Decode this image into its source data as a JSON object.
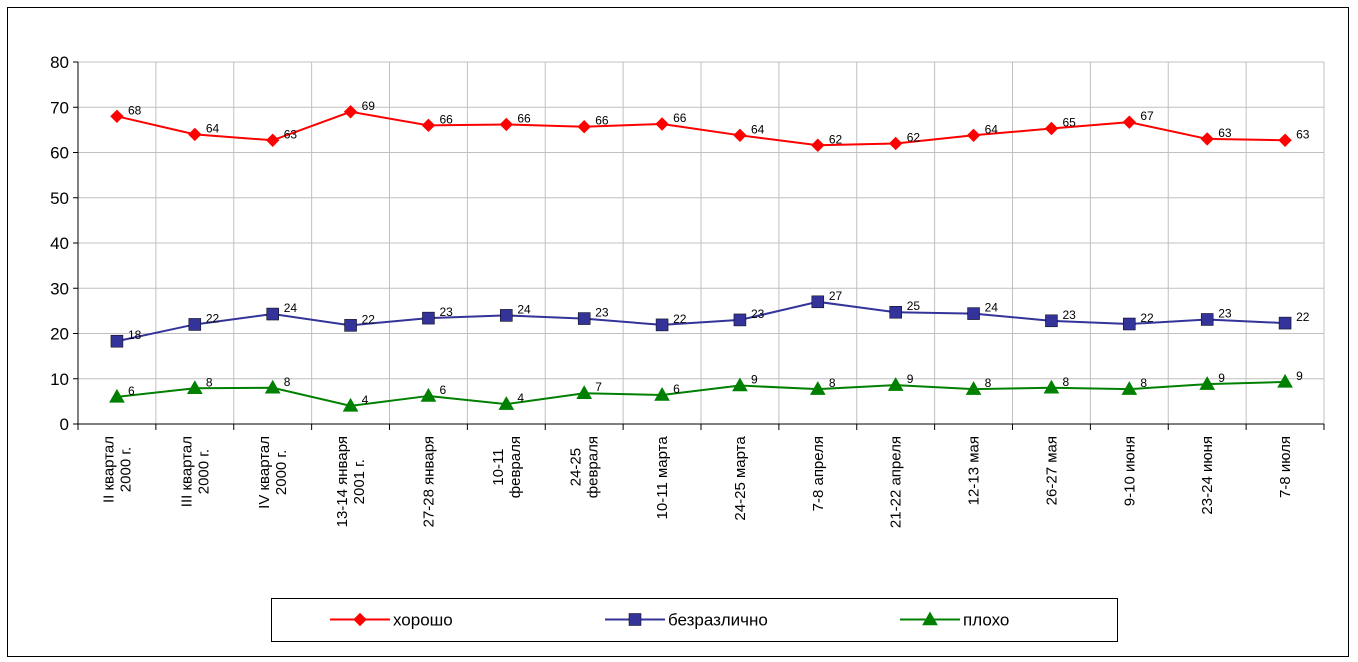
{
  "chart_data": {
    "type": "line",
    "categories": [
      [
        "II квартал",
        "2000 г."
      ],
      [
        "III квартал",
        "2000 г."
      ],
      [
        "IV квартал",
        "2000 г."
      ],
      [
        "13-14 января",
        "2001 г."
      ],
      [
        "27-28 января"
      ],
      [
        "10-11",
        "февраля"
      ],
      [
        "24-25",
        "февраля"
      ],
      [
        "10-11 марта"
      ],
      [
        "24-25 марта"
      ],
      [
        "7-8 апреля"
      ],
      [
        "21-22 апреля"
      ],
      [
        "12-13 мая"
      ],
      [
        "26-27 мая"
      ],
      [
        "9-10 июня"
      ],
      [
        "23-24 июня"
      ],
      [
        "7-8 июля"
      ]
    ],
    "series": [
      {
        "name": "хорошо",
        "color": "#ff0000",
        "marker": "diamond",
        "values": [
          68,
          64,
          62.7,
          69,
          66,
          66.2,
          65.7,
          66.3,
          63.8,
          61.6,
          62,
          63.8,
          65.3,
          66.7,
          63,
          62.7
        ],
        "labels": [
          "68",
          "64",
          "63",
          "69",
          "66",
          "66",
          "66",
          "66",
          "64",
          "62",
          "62",
          "64",
          "65",
          "67",
          "63",
          "63"
        ]
      },
      {
        "name": "безразлично",
        "color": "#333399",
        "marker": "square",
        "values": [
          18.3,
          22,
          24.3,
          21.8,
          23.4,
          24,
          23.3,
          21.9,
          23,
          27,
          24.7,
          24.4,
          22.8,
          22.1,
          23.1,
          22.3
        ],
        "labels": [
          "18",
          "22",
          "24",
          "22",
          "23",
          "24",
          "23",
          "22",
          "23",
          "27",
          "25",
          "24",
          "23",
          "22",
          "23",
          "22"
        ]
      },
      {
        "name": "плохо",
        "color": "#008000",
        "marker": "triangle",
        "values": [
          6,
          7.9,
          8,
          4,
          6.2,
          4.4,
          6.8,
          6.4,
          8.5,
          7.7,
          8.6,
          7.7,
          8,
          7.7,
          8.8,
          9.3
        ],
        "labels": [
          "6",
          "8",
          "8",
          "4",
          "6",
          "4",
          "7",
          "6",
          "9",
          "8",
          "9",
          "8",
          "8",
          "8",
          "9",
          "9"
        ]
      }
    ],
    "yticks": [
      "0",
      "10",
      "20",
      "30",
      "40",
      "50",
      "60",
      "70",
      "80"
    ],
    "ylim": [
      0,
      80
    ],
    "grid": true,
    "legend_position": "bottom",
    "title": "",
    "xlabel": "",
    "ylabel": ""
  }
}
